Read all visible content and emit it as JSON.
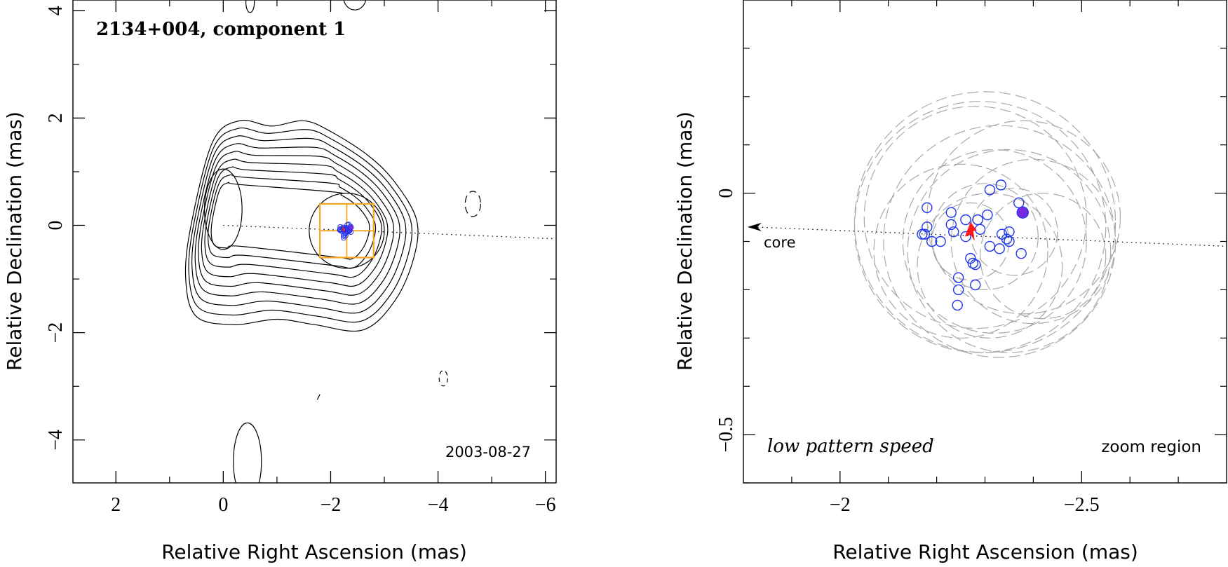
{
  "chart_data": [
    {
      "type": "contour",
      "panel": "left",
      "title": "2134+004, component 1",
      "date": "2003-08-27",
      "xlabel": "Relative Right Ascension (mas)",
      "ylabel": "Relative Declination (mas)",
      "xlim": [
        2.8,
        -6.2
      ],
      "ylim": [
        -4.8,
        4.2
      ],
      "xticks": [
        2,
        0,
        -2,
        -4,
        -6
      ],
      "xtick_labels": [
        "2",
        "0",
        "−2",
        "−4",
        "−6"
      ],
      "yticks": [
        4,
        2,
        0,
        -2,
        -4
      ],
      "ytick_labels": [
        "4",
        "2",
        "0",
        "−2",
        "−4"
      ],
      "contour_levels": 11,
      "jet_axis": {
        "from": [
          0.0,
          0.0
        ],
        "to": [
          -6.2,
          -0.25
        ],
        "style": "dotted"
      },
      "zoom_box": {
        "x": [
          -1.8,
          -2.8
        ],
        "y": [
          0.4,
          -0.6
        ],
        "color": "#F5A623"
      },
      "components_center": [
        -2.3,
        -0.1
      ]
    },
    {
      "type": "scatter",
      "panel": "right",
      "label_left": "low pattern speed",
      "label_right": "zoom region",
      "core_label": "core",
      "xlabel": "Relative Right Ascension (mas)",
      "ylabel": "Relative Declination (mas)",
      "xlim": [
        -1.8,
        -2.8
      ],
      "ylim": [
        -0.6,
        0.4
      ],
      "xticks": [
        -2,
        -2.5
      ],
      "xtick_labels": [
        "−2",
        "−2.5"
      ],
      "yticks": [
        0,
        -0.5
      ],
      "ytick_labels": [
        "0",
        "−0.5"
      ],
      "points": [
        {
          "x": -2.31,
          "y": 0.007
        },
        {
          "x": -2.333,
          "y": 0.017
        },
        {
          "x": -2.37,
          "y": -0.02
        },
        {
          "x": -2.18,
          "y": -0.03
        },
        {
          "x": -2.18,
          "y": -0.07
        },
        {
          "x": -2.175,
          "y": -0.085
        },
        {
          "x": -2.17,
          "y": -0.085
        },
        {
          "x": -2.19,
          "y": -0.1
        },
        {
          "x": -2.208,
          "y": -0.1
        },
        {
          "x": -2.23,
          "y": -0.04
        },
        {
          "x": -2.23,
          "y": -0.065
        },
        {
          "x": -2.235,
          "y": -0.08
        },
        {
          "x": -2.26,
          "y": -0.055
        },
        {
          "x": -2.26,
          "y": -0.09
        },
        {
          "x": -2.285,
          "y": -0.055
        },
        {
          "x": -2.29,
          "y": -0.075
        },
        {
          "x": -2.305,
          "y": -0.045
        },
        {
          "x": -2.335,
          "y": -0.085
        },
        {
          "x": -2.345,
          "y": -0.095
        },
        {
          "x": -2.35,
          "y": -0.08
        },
        {
          "x": -2.35,
          "y": -0.1
        },
        {
          "x": -2.31,
          "y": -0.11
        },
        {
          "x": -2.33,
          "y": -0.115
        },
        {
          "x": -2.375,
          "y": -0.125
        },
        {
          "x": -2.27,
          "y": -0.135
        },
        {
          "x": -2.275,
          "y": -0.145
        },
        {
          "x": -2.28,
          "y": -0.148
        },
        {
          "x": -2.245,
          "y": -0.175
        },
        {
          "x": -2.245,
          "y": -0.2
        },
        {
          "x": -2.28,
          "y": -0.19
        },
        {
          "x": -2.243,
          "y": -0.232
        }
      ],
      "highlight_point": {
        "x": -2.378,
        "y": -0.04
      },
      "red_marker": {
        "x": -2.27,
        "y": -0.08
      },
      "jet_axis": {
        "from": [
          -1.82,
          -0.07
        ],
        "to": [
          -2.8,
          -0.11
        ],
        "style": "dotted"
      }
    }
  ]
}
